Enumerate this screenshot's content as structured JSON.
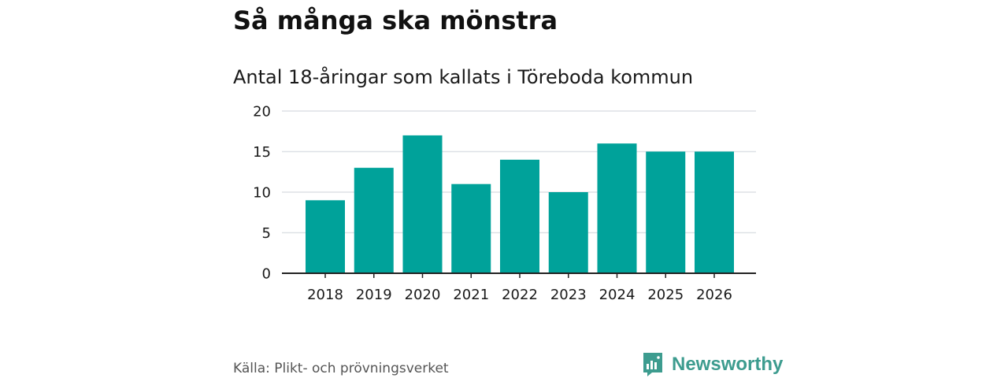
{
  "page": {
    "title": "Så många ska mönstra",
    "source": "Källa: Plikt- och prövningsverket",
    "brand": "Newsworthy",
    "brand_logo_icon": "newsworthy-chart-bubble-icon"
  },
  "chart_data": {
    "type": "bar",
    "title": "Antal 18-åringar som kallats i Töreboda kommun",
    "xlabel": "",
    "ylabel": "",
    "categories": [
      "2018",
      "2019",
      "2020",
      "2021",
      "2022",
      "2023",
      "2024",
      "2025",
      "2026"
    ],
    "values": [
      9,
      13,
      17,
      11,
      14,
      10,
      16,
      15,
      15
    ],
    "ylim": [
      0,
      20
    ],
    "yticks": [
      "0",
      "5",
      "10",
      "15",
      "20"
    ],
    "grid": true,
    "legend": "none",
    "colors": {
      "bar": "#00a29a",
      "grid": "#dde1e6",
      "axis": "#222222",
      "brand": "#3d9c8f"
    }
  }
}
